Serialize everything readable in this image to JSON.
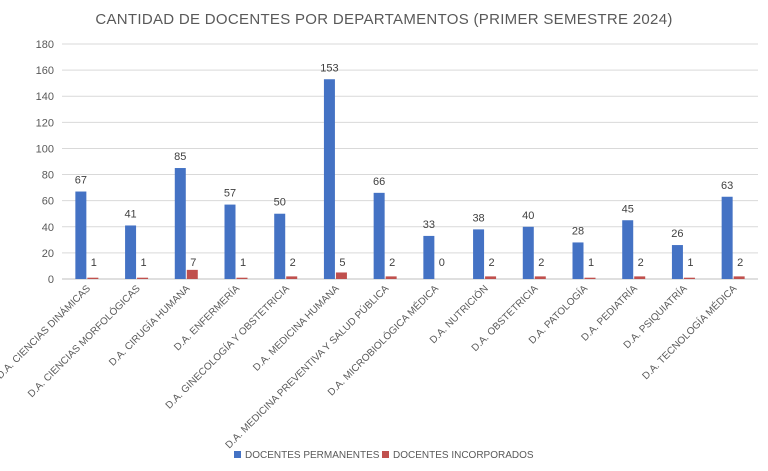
{
  "chart_data": {
    "type": "bar",
    "title": "CANTIDAD DE DOCENTES POR DEPARTAMENTOS (PRIMER SEMESTRE 2024)",
    "xlabel": "",
    "ylabel": "",
    "ylim": [
      0,
      180
    ],
    "yticks": [
      0,
      20,
      40,
      60,
      80,
      100,
      120,
      140,
      160,
      180
    ],
    "grid": true,
    "legend_position": "bottom",
    "categories": [
      "D.A. CIENCIAS DINÁMICAS",
      "D.A. CIENCIAS MORFOLÓGICAS",
      "D.A. CIRUGÍA HUMANA",
      "D.A. ENFERMERÍA",
      "D.A. GINECOLOGÍA Y OBSTETRICIA",
      "D.A. MEDICINA HUMANA",
      "D.A. MEDICINA PREVENTIVA Y SALUD PÚBLICA",
      "D.A. MICROBIOLÓGICA MÉDICA",
      "D.A. NUTRICIÓN",
      "D.A. OBSTETRICIA",
      "D.A. PATOLOGÍA",
      "D.A. PEDIATRÍA",
      "D.A. PSIQUIATRÍA",
      "D.A. TECNOLOGÍA MÉDICA"
    ],
    "series": [
      {
        "name": "DOCENTES PERMANENTES",
        "color": "#4472C4",
        "values": [
          67,
          41,
          85,
          57,
          50,
          153,
          66,
          33,
          38,
          40,
          28,
          45,
          26,
          63
        ]
      },
      {
        "name": "DOCENTES INCORPORADOS",
        "color": "#C0504D",
        "values": [
          1,
          1,
          7,
          1,
          2,
          5,
          2,
          0,
          2,
          2,
          1,
          2,
          1,
          2
        ]
      }
    ]
  }
}
